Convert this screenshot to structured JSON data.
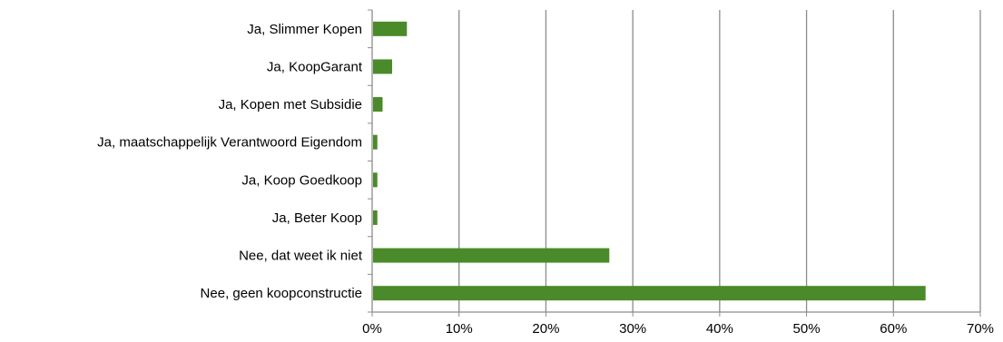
{
  "chart_data": {
    "type": "bar",
    "orientation": "horizontal",
    "title": "",
    "xlabel": "",
    "ylabel": "",
    "categories": [
      "Ja, Slimmer Kopen",
      "Ja, KoopGarant",
      "Ja, Kopen met Subsidie",
      "Ja, maatschappelijk Verantwoord Eigendom",
      "Ja, Koop Goedkoop",
      "Ja, Beter Koop",
      "Nee, dat weet ik niet",
      "Nee, geen koopconstructie"
    ],
    "values": [
      4.0,
      2.3,
      1.2,
      0.6,
      0.6,
      0.6,
      27.3,
      63.7
    ],
    "xlim": [
      0,
      70
    ],
    "x_ticks": [
      "0%",
      "10%",
      "20%",
      "30%",
      "40%",
      "50%",
      "60%",
      "70%"
    ],
    "x_tick_values": [
      0,
      10,
      20,
      30,
      40,
      50,
      60,
      70
    ],
    "grid": "vertical",
    "legend": "none",
    "colors": {
      "bar": "#4a8a2a",
      "grid": "#8c8c8c",
      "axis": "#8c8c8c"
    }
  }
}
